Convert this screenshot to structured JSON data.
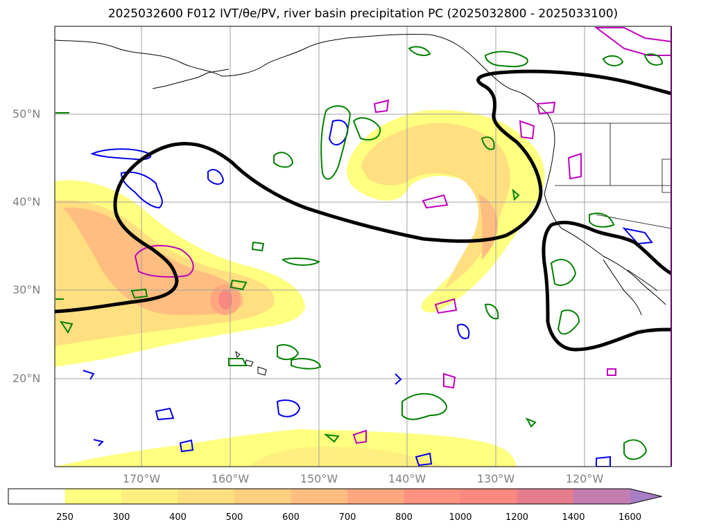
{
  "title": "2025032600 F012 IVT/θe/PV, river basin precipitation PC (2025032800 - 2025033100)",
  "map": {
    "lat_labels": [
      "50°N",
      "40°N",
      "30°N",
      "20°N"
    ],
    "lon_labels": [
      "170°W",
      "160°W",
      "150°W",
      "140°W",
      "130°W",
      "120°W"
    ],
    "fields": [
      "IVT shading",
      "theta-e contours",
      "PV contours",
      "coastlines",
      "state borders"
    ]
  },
  "colorbar": {
    "levels": [
      "250",
      "300",
      "400",
      "500",
      "600",
      "700",
      "800",
      "1000",
      "1200",
      "1400",
      "1600"
    ],
    "colors": [
      "#ffff80",
      "#ffef80",
      "#ffdf80",
      "#ffcf80",
      "#ffbd80",
      "#ffa880",
      "#ff9280",
      "#f98880",
      "#e67d8f",
      "#c47daf",
      "#a77dc5",
      "#a77dc5"
    ],
    "extend": "max"
  }
}
